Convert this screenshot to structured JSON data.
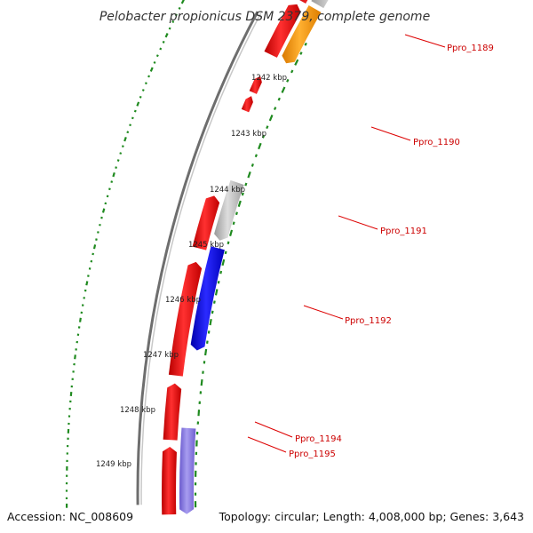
{
  "title": "Pelobacter propionicus DSM 2379, complete genome",
  "footer": {
    "accession": "Accession: NC_008609",
    "topology": "Topology: circular; Length: 4,008,000 bp; Genes: 3,643"
  },
  "scale_labels": [
    "1242 kbp",
    "1243 kbp",
    "1244 kbp",
    "1245 kbp",
    "1246 kbp",
    "1247 kbp",
    "1248 kbp",
    "1249 kbp"
  ],
  "gene_labels": [
    "Ppro_1189",
    "Ppro_1190",
    "Ppro_1191",
    "Ppro_1192",
    "Ppro_1194",
    "Ppro_1195"
  ],
  "colors": {
    "backbone": "#777777",
    "forward_cds": "#ff0000",
    "reverse_cds_blue": "#0000dd",
    "reverse_cds_lavender": "#8877dd",
    "reverse_cds_gray": "#bbbbbb",
    "reverse_cds_orange": "#ff9900",
    "tick_green": "#228822",
    "gene_label": "#cc0000"
  }
}
